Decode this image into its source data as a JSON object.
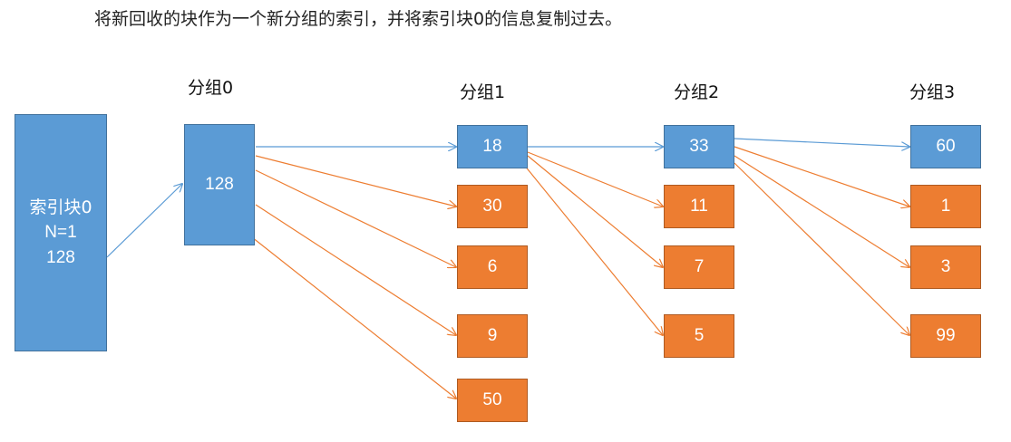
{
  "caption": "将新回收的块作为一个新分组的索引，并将索引块0的信息复制过去。",
  "index_block": {
    "title": "索引块0",
    "n": "N=1",
    "value": "128"
  },
  "groups": [
    {
      "label": "分组0",
      "items": [
        "128"
      ]
    },
    {
      "label": "分组1",
      "items": [
        "18",
        "30",
        "6",
        "9",
        "50"
      ]
    },
    {
      "label": "分组2",
      "items": [
        "33",
        "11",
        "7",
        "5"
      ]
    },
    {
      "label": "分组3",
      "items": [
        "60",
        "1",
        "3",
        "99"
      ]
    }
  ],
  "colors": {
    "blue": "#5b9bd5",
    "orange": "#ed7d31",
    "blue_line": "#5b9bd5",
    "orange_line": "#ed7d31"
  }
}
